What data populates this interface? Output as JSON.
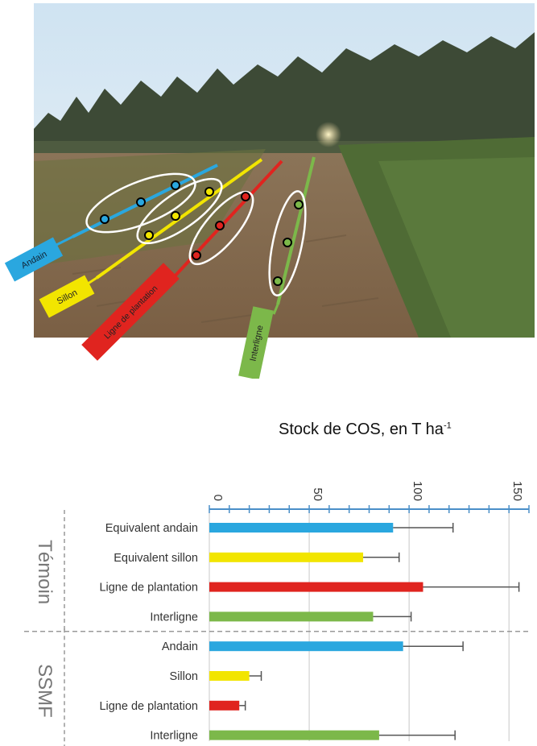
{
  "photo": {
    "labels": {
      "andain": "Andain",
      "sillon": "Sillon",
      "ligne": "Ligne de plantation",
      "interligne": "Interligne"
    },
    "colors": {
      "andain": "#2aa7df",
      "sillon": "#f2e500",
      "ligne": "#e0241f",
      "interligne": "#7cb84a"
    }
  },
  "chart_data": {
    "type": "bar",
    "orientation": "horizontal",
    "title": "Stock de COS, en T ha",
    "title_superscript": "-1",
    "xlim": [
      0,
      160
    ],
    "x_ticks": [
      0,
      50,
      100,
      150
    ],
    "grid": true,
    "groups": [
      {
        "name": "Témoin",
        "categories": [
          "Equivalent andain",
          "Equivalent sillon",
          "Ligne de plantation",
          "Interligne"
        ],
        "values": [
          92,
          77,
          107,
          82
        ],
        "errors": [
          30,
          18,
          48,
          19
        ],
        "colors": [
          "#2aa7df",
          "#f2e500",
          "#e0241f",
          "#7cb84a"
        ]
      },
      {
        "name": "SSMF",
        "categories": [
          "Andain",
          "Sillon",
          "Ligne de plantation",
          "Interligne"
        ],
        "values": [
          97,
          20,
          15,
          85
        ],
        "errors": [
          30,
          6,
          3,
          38
        ],
        "colors": [
          "#2aa7df",
          "#f2e500",
          "#e0241f",
          "#7cb84a"
        ]
      }
    ]
  }
}
